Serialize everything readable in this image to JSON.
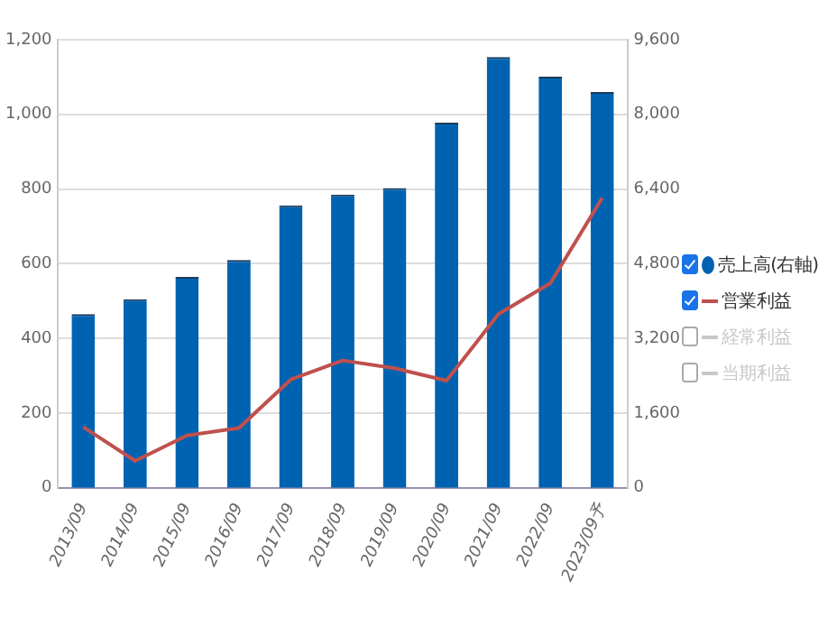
{
  "chart_data": {
    "type": "bar",
    "categories": [
      "2013/09",
      "2014/09",
      "2015/09",
      "2016/09",
      "2017/09",
      "2018/09",
      "2019/09",
      "2020/09",
      "2021/09",
      "2022/09",
      "2023/09予"
    ],
    "series": [
      {
        "name": "売上高(右軸)",
        "axis": "y2",
        "color": "#0063b1",
        "values": [
          3720,
          4040,
          4520,
          4880,
          6050,
          6280,
          6420,
          7820,
          9230,
          8810,
          8480
        ]
      },
      {
        "name": "営業利益",
        "type": "line",
        "color": "#c0504d",
        "values": [
          163,
          72,
          140,
          160,
          290,
          341,
          320,
          287,
          465,
          548,
          776
        ]
      },
      {
        "name": "経常利益",
        "type": "line",
        "color": "#c8c8c8",
        "values": [
          null,
          null,
          null,
          null,
          null,
          null,
          null,
          null,
          null,
          null,
          null
        ]
      },
      {
        "name": "当期利益",
        "type": "line",
        "color": "#c8c8c8",
        "values": [
          null,
          null,
          null,
          null,
          null,
          null,
          null,
          null,
          null,
          null,
          null
        ]
      }
    ],
    "ylim": [
      0,
      1200
    ],
    "yticks": [
      0,
      200,
      400,
      600,
      800,
      {
        "value": 1000,
        "label": "1,000"
      },
      {
        "value": 1200,
        "label": "1,200"
      }
    ],
    "y2lim": [
      0,
      9600
    ],
    "y2ticks": [
      0,
      {
        "value": 1600,
        "label": "1,600"
      },
      {
        "value": 3200,
        "label": "3,200"
      },
      {
        "value": 4800,
        "label": "4,800"
      },
      {
        "value": 6400,
        "label": "6,400"
      },
      {
        "value": 8000,
        "label": "8,000"
      },
      {
        "value": 9600,
        "label": "9,600"
      }
    ],
    "grid": "y",
    "legend": "right",
    "marker": "none"
  }
}
